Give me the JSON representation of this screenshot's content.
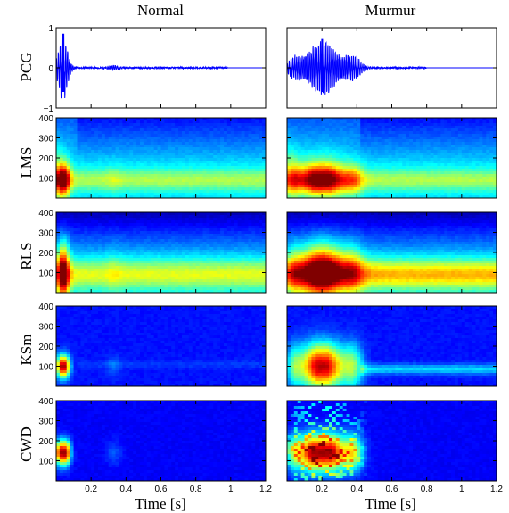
{
  "chart_data": {
    "type": "heatmap",
    "columns": [
      "Normal",
      "Murmur"
    ],
    "rows": [
      "PCG",
      "LMS",
      "RLS",
      "KSm",
      "CWD"
    ],
    "xlabel": "Time [s]",
    "xlim": [
      0,
      1.2
    ],
    "xticks": [
      "0.2",
      "0.4",
      "0.6",
      "0.8",
      "1",
      "1.2"
    ],
    "pcg_ylim": [
      -1,
      1
    ],
    "pcg_yticks": [
      "1",
      "0",
      "−1"
    ],
    "freq_ylim": [
      0,
      400
    ],
    "freq_yticks": [
      "400",
      "300",
      "200",
      "100"
    ],
    "colormap": "jet",
    "line_color": "#0000ff",
    "events": {
      "Normal": [
        {
          "t": 0.04,
          "amp": 0.85,
          "dur": 0.025
        },
        {
          "t": 0.33,
          "amp": 0.06,
          "dur": 0.03
        }
      ],
      "Murmur": [
        {
          "t": 0.04,
          "amp": 0.18,
          "dur": 0.03
        },
        {
          "t": 0.2,
          "amp": 0.7,
          "dur": 0.09
        },
        {
          "t": 0.38,
          "amp": 0.25,
          "dur": 0.04
        }
      ]
    },
    "signal_end": {
      "Normal": 0.98,
      "Murmur": 0.8
    }
  }
}
